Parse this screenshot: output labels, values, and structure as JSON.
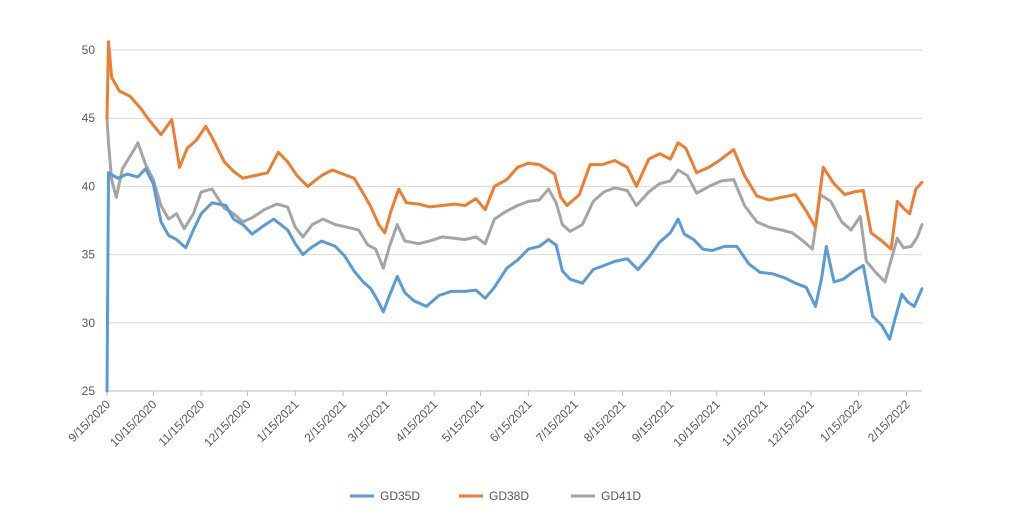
{
  "chart_data": {
    "type": "line",
    "x_type": "date",
    "title": "",
    "xlabel": "",
    "ylabel": "",
    "ylim": [
      25,
      50
    ],
    "yticks": [
      25,
      30,
      35,
      40,
      45,
      50
    ],
    "xlim": [
      "2020-09-15",
      "2022-02-25"
    ],
    "xtick_labels": [
      "9/15/2020",
      "10/15/2020",
      "11/15/2020",
      "12/15/2020",
      "1/15/2021",
      "2/15/2021",
      "3/15/2021",
      "4/15/2021",
      "5/15/2021",
      "6/15/2021",
      "7/15/2021",
      "8/15/2021",
      "9/15/2021",
      "10/15/2021",
      "11/15/2021",
      "12/15/2021",
      "1/15/2022",
      "2/15/2022"
    ],
    "grid": "horizontal",
    "legend_position": "bottom",
    "colors": {
      "GD35D": "#5B9BD5",
      "GD38D": "#ED7D31",
      "GD41D": "#A5A5A5",
      "grid": "#d9d9d9",
      "axis": "#bfbfbf"
    },
    "series": [
      {
        "name": "GD35D",
        "points": [
          [
            "2020-09-15",
            25.0
          ],
          [
            "2020-09-16",
            41.0
          ],
          [
            "2020-09-22",
            40.6
          ],
          [
            "2020-09-28",
            40.9
          ],
          [
            "2020-10-05",
            40.7
          ],
          [
            "2020-10-10",
            41.3
          ],
          [
            "2020-10-15",
            40.2
          ],
          [
            "2020-10-20",
            37.4
          ],
          [
            "2020-10-25",
            36.4
          ],
          [
            "2020-10-30",
            36.1
          ],
          [
            "2020-11-05",
            35.5
          ],
          [
            "2020-11-10",
            36.8
          ],
          [
            "2020-11-15",
            38.0
          ],
          [
            "2020-11-22",
            38.8
          ],
          [
            "2020-12-01",
            38.6
          ],
          [
            "2020-12-06",
            37.6
          ],
          [
            "2020-12-12",
            37.2
          ],
          [
            "2020-12-18",
            36.5
          ],
          [
            "2020-12-24",
            37.0
          ],
          [
            "2021-01-01",
            37.6
          ],
          [
            "2021-01-10",
            36.8
          ],
          [
            "2021-01-15",
            35.8
          ],
          [
            "2021-01-20",
            35.0
          ],
          [
            "2021-01-25",
            35.5
          ],
          [
            "2021-02-01",
            36.0
          ],
          [
            "2021-02-10",
            35.6
          ],
          [
            "2021-02-16",
            34.9
          ],
          [
            "2021-02-22",
            33.8
          ],
          [
            "2021-02-28",
            33.0
          ],
          [
            "2021-03-05",
            32.5
          ],
          [
            "2021-03-10",
            31.5
          ],
          [
            "2021-03-13",
            30.8
          ],
          [
            "2021-03-17",
            32.0
          ],
          [
            "2021-03-22",
            33.4
          ],
          [
            "2021-03-27",
            32.2
          ],
          [
            "2021-04-02",
            31.6
          ],
          [
            "2021-04-10",
            31.2
          ],
          [
            "2021-04-18",
            32.0
          ],
          [
            "2021-04-26",
            32.3
          ],
          [
            "2021-05-05",
            32.3
          ],
          [
            "2021-05-12",
            32.4
          ],
          [
            "2021-05-18",
            31.8
          ],
          [
            "2021-05-24",
            32.6
          ],
          [
            "2021-06-01",
            34.0
          ],
          [
            "2021-06-08",
            34.6
          ],
          [
            "2021-06-15",
            35.4
          ],
          [
            "2021-06-22",
            35.6
          ],
          [
            "2021-06-28",
            36.1
          ],
          [
            "2021-07-03",
            35.7
          ],
          [
            "2021-07-07",
            33.8
          ],
          [
            "2021-07-12",
            33.2
          ],
          [
            "2021-07-20",
            32.9
          ],
          [
            "2021-07-27",
            33.9
          ],
          [
            "2021-08-03",
            34.2
          ],
          [
            "2021-08-10",
            34.5
          ],
          [
            "2021-08-18",
            34.7
          ],
          [
            "2021-08-25",
            33.9
          ],
          [
            "2021-09-01",
            34.8
          ],
          [
            "2021-09-08",
            35.9
          ],
          [
            "2021-09-15",
            36.6
          ],
          [
            "2021-09-20",
            37.6
          ],
          [
            "2021-09-24",
            36.5
          ],
          [
            "2021-09-30",
            36.1
          ],
          [
            "2021-10-06",
            35.4
          ],
          [
            "2021-10-12",
            35.3
          ],
          [
            "2021-10-20",
            35.6
          ],
          [
            "2021-10-28",
            35.6
          ],
          [
            "2021-11-05",
            34.3
          ],
          [
            "2021-11-12",
            33.7
          ],
          [
            "2021-11-20",
            33.6
          ],
          [
            "2021-11-28",
            33.3
          ],
          [
            "2021-12-05",
            32.9
          ],
          [
            "2021-12-12",
            32.6
          ],
          [
            "2021-12-18",
            31.2
          ],
          [
            "2021-12-22",
            33.3
          ],
          [
            "2021-12-25",
            35.6
          ],
          [
            "2021-12-30",
            33.0
          ],
          [
            "2022-01-05",
            33.2
          ],
          [
            "2022-01-12",
            33.8
          ],
          [
            "2022-01-18",
            34.2
          ],
          [
            "2022-01-24",
            30.5
          ],
          [
            "2022-01-30",
            29.8
          ],
          [
            "2022-02-04",
            28.8
          ],
          [
            "2022-02-08",
            30.5
          ],
          [
            "2022-02-12",
            32.1
          ],
          [
            "2022-02-16",
            31.5
          ],
          [
            "2022-02-20",
            31.2
          ],
          [
            "2022-02-25",
            32.5
          ]
        ]
      },
      {
        "name": "GD38D",
        "points": [
          [
            "2020-09-15",
            45.0
          ],
          [
            "2020-09-16",
            50.6
          ],
          [
            "2020-09-18",
            48.0
          ],
          [
            "2020-09-23",
            47.0
          ],
          [
            "2020-09-30",
            46.6
          ],
          [
            "2020-10-07",
            45.7
          ],
          [
            "2020-10-12",
            44.9
          ],
          [
            "2020-10-20",
            43.8
          ],
          [
            "2020-10-27",
            44.9
          ],
          [
            "2020-11-01",
            41.4
          ],
          [
            "2020-11-06",
            42.8
          ],
          [
            "2020-11-12",
            43.4
          ],
          [
            "2020-11-18",
            44.4
          ],
          [
            "2020-11-22",
            43.6
          ],
          [
            "2020-11-30",
            41.8
          ],
          [
            "2020-12-06",
            41.1
          ],
          [
            "2020-12-12",
            40.6
          ],
          [
            "2020-12-20",
            40.8
          ],
          [
            "2020-12-28",
            41.0
          ],
          [
            "2021-01-04",
            42.5
          ],
          [
            "2021-01-10",
            41.8
          ],
          [
            "2021-01-16",
            40.8
          ],
          [
            "2021-01-23",
            40.0
          ],
          [
            "2021-02-01",
            40.8
          ],
          [
            "2021-02-08",
            41.2
          ],
          [
            "2021-02-15",
            40.9
          ],
          [
            "2021-02-22",
            40.6
          ],
          [
            "2021-02-28",
            39.5
          ],
          [
            "2021-03-05",
            38.5
          ],
          [
            "2021-03-10",
            37.2
          ],
          [
            "2021-03-14",
            36.6
          ],
          [
            "2021-03-18",
            38.2
          ],
          [
            "2021-03-23",
            39.8
          ],
          [
            "2021-03-28",
            38.8
          ],
          [
            "2021-04-05",
            38.7
          ],
          [
            "2021-04-12",
            38.5
          ],
          [
            "2021-04-20",
            38.6
          ],
          [
            "2021-04-28",
            38.7
          ],
          [
            "2021-05-05",
            38.6
          ],
          [
            "2021-05-12",
            39.1
          ],
          [
            "2021-05-18",
            38.3
          ],
          [
            "2021-05-24",
            40.0
          ],
          [
            "2021-06-01",
            40.5
          ],
          [
            "2021-06-08",
            41.4
          ],
          [
            "2021-06-15",
            41.7
          ],
          [
            "2021-06-22",
            41.6
          ],
          [
            "2021-06-28",
            41.2
          ],
          [
            "2021-07-02",
            40.9
          ],
          [
            "2021-07-06",
            39.2
          ],
          [
            "2021-07-10",
            38.6
          ],
          [
            "2021-07-18",
            39.4
          ],
          [
            "2021-07-25",
            41.6
          ],
          [
            "2021-08-02",
            41.6
          ],
          [
            "2021-08-10",
            41.9
          ],
          [
            "2021-08-18",
            41.4
          ],
          [
            "2021-08-24",
            40.0
          ],
          [
            "2021-09-01",
            42.0
          ],
          [
            "2021-09-08",
            42.4
          ],
          [
            "2021-09-15",
            42.0
          ],
          [
            "2021-09-20",
            43.2
          ],
          [
            "2021-09-25",
            42.8
          ],
          [
            "2021-10-02",
            41.0
          ],
          [
            "2021-10-10",
            41.4
          ],
          [
            "2021-10-18",
            42.0
          ],
          [
            "2021-10-26",
            42.7
          ],
          [
            "2021-11-02",
            40.8
          ],
          [
            "2021-11-10",
            39.3
          ],
          [
            "2021-11-18",
            39.0
          ],
          [
            "2021-11-26",
            39.2
          ],
          [
            "2021-12-05",
            39.4
          ],
          [
            "2021-12-12",
            38.2
          ],
          [
            "2021-12-18",
            37.0
          ],
          [
            "2021-12-23",
            41.4
          ],
          [
            "2021-12-30",
            40.2
          ],
          [
            "2022-01-06",
            39.4
          ],
          [
            "2022-01-12",
            39.6
          ],
          [
            "2022-01-18",
            39.7
          ],
          [
            "2022-01-23",
            36.6
          ],
          [
            "2022-01-30",
            36.0
          ],
          [
            "2022-02-05",
            35.4
          ],
          [
            "2022-02-09",
            38.9
          ],
          [
            "2022-02-13",
            38.4
          ],
          [
            "2022-02-17",
            38.0
          ],
          [
            "2022-02-21",
            39.8
          ],
          [
            "2022-02-25",
            40.3
          ]
        ]
      },
      {
        "name": "GD41D",
        "points": [
          [
            "2020-09-15",
            45.0
          ],
          [
            "2020-09-16",
            43.2
          ],
          [
            "2020-09-18",
            40.5
          ],
          [
            "2020-09-21",
            39.2
          ],
          [
            "2020-09-25",
            41.3
          ],
          [
            "2020-10-01",
            42.4
          ],
          [
            "2020-10-05",
            43.2
          ],
          [
            "2020-10-10",
            41.6
          ],
          [
            "2020-10-15",
            40.5
          ],
          [
            "2020-10-20",
            38.6
          ],
          [
            "2020-10-25",
            37.6
          ],
          [
            "2020-10-30",
            38.0
          ],
          [
            "2020-11-04",
            36.9
          ],
          [
            "2020-11-10",
            38.0
          ],
          [
            "2020-11-15",
            39.6
          ],
          [
            "2020-11-22",
            39.8
          ],
          [
            "2020-11-30",
            38.4
          ],
          [
            "2020-12-06",
            38.0
          ],
          [
            "2020-12-12",
            37.4
          ],
          [
            "2020-12-18",
            37.7
          ],
          [
            "2020-12-26",
            38.3
          ],
          [
            "2021-01-03",
            38.7
          ],
          [
            "2021-01-10",
            38.5
          ],
          [
            "2021-01-15",
            37.0
          ],
          [
            "2021-01-20",
            36.3
          ],
          [
            "2021-01-26",
            37.2
          ],
          [
            "2021-02-02",
            37.6
          ],
          [
            "2021-02-10",
            37.2
          ],
          [
            "2021-02-18",
            37.0
          ],
          [
            "2021-02-25",
            36.8
          ],
          [
            "2021-03-03",
            35.7
          ],
          [
            "2021-03-08",
            35.4
          ],
          [
            "2021-03-13",
            34.0
          ],
          [
            "2021-03-17",
            35.6
          ],
          [
            "2021-03-22",
            37.2
          ],
          [
            "2021-03-27",
            36.0
          ],
          [
            "2021-04-05",
            35.8
          ],
          [
            "2021-04-12",
            36.0
          ],
          [
            "2021-04-20",
            36.3
          ],
          [
            "2021-04-28",
            36.2
          ],
          [
            "2021-05-05",
            36.1
          ],
          [
            "2021-05-12",
            36.3
          ],
          [
            "2021-05-18",
            35.8
          ],
          [
            "2021-05-24",
            37.6
          ],
          [
            "2021-06-01",
            38.2
          ],
          [
            "2021-06-08",
            38.6
          ],
          [
            "2021-06-15",
            38.9
          ],
          [
            "2021-06-22",
            39.0
          ],
          [
            "2021-06-28",
            39.8
          ],
          [
            "2021-07-03",
            38.8
          ],
          [
            "2021-07-07",
            37.2
          ],
          [
            "2021-07-12",
            36.7
          ],
          [
            "2021-07-20",
            37.2
          ],
          [
            "2021-07-27",
            38.9
          ],
          [
            "2021-08-03",
            39.6
          ],
          [
            "2021-08-10",
            39.9
          ],
          [
            "2021-08-18",
            39.7
          ],
          [
            "2021-08-24",
            38.6
          ],
          [
            "2021-09-01",
            39.6
          ],
          [
            "2021-09-08",
            40.2
          ],
          [
            "2021-09-15",
            40.4
          ],
          [
            "2021-09-20",
            41.2
          ],
          [
            "2021-09-26",
            40.8
          ],
          [
            "2021-10-02",
            39.5
          ],
          [
            "2021-10-10",
            40.0
          ],
          [
            "2021-10-18",
            40.4
          ],
          [
            "2021-10-26",
            40.5
          ],
          [
            "2021-11-02",
            38.6
          ],
          [
            "2021-11-10",
            37.4
          ],
          [
            "2021-11-18",
            37.0
          ],
          [
            "2021-11-26",
            36.8
          ],
          [
            "2021-12-03",
            36.6
          ],
          [
            "2021-12-10",
            36.0
          ],
          [
            "2021-12-16",
            35.4
          ],
          [
            "2021-12-21",
            39.4
          ],
          [
            "2021-12-28",
            38.9
          ],
          [
            "2022-01-04",
            37.4
          ],
          [
            "2022-01-10",
            36.8
          ],
          [
            "2022-01-16",
            37.8
          ],
          [
            "2022-01-20",
            34.5
          ],
          [
            "2022-01-26",
            33.7
          ],
          [
            "2022-02-01",
            33.0
          ],
          [
            "2022-02-05",
            34.6
          ],
          [
            "2022-02-09",
            36.2
          ],
          [
            "2022-02-13",
            35.5
          ],
          [
            "2022-02-18",
            35.6
          ],
          [
            "2022-02-22",
            36.3
          ],
          [
            "2022-02-25",
            37.2
          ]
        ]
      }
    ]
  }
}
